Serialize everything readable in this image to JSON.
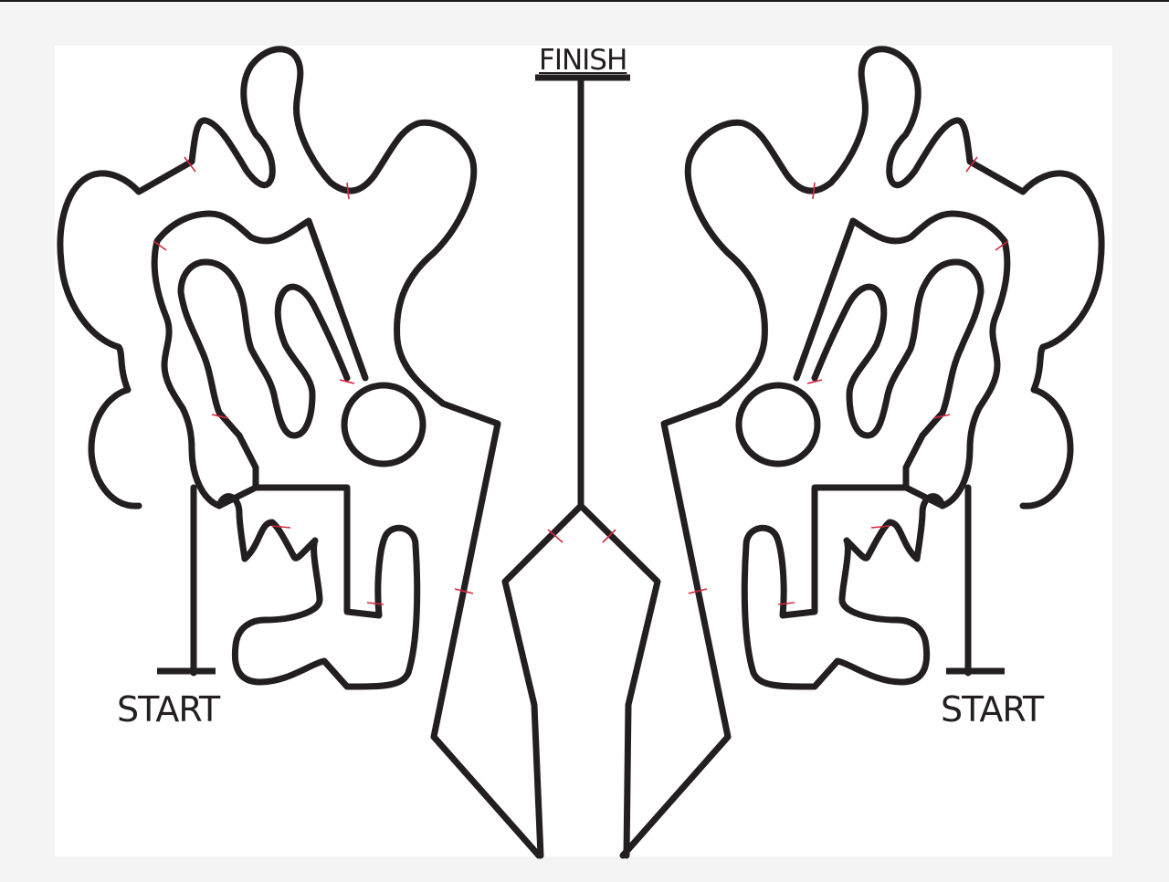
{
  "labels": {
    "finish": "FINISH",
    "start_left": "START",
    "start_right": "START"
  },
  "colors": {
    "track": "#231f20",
    "checkpoint": "#d6283c",
    "background": "#ffffff"
  }
}
